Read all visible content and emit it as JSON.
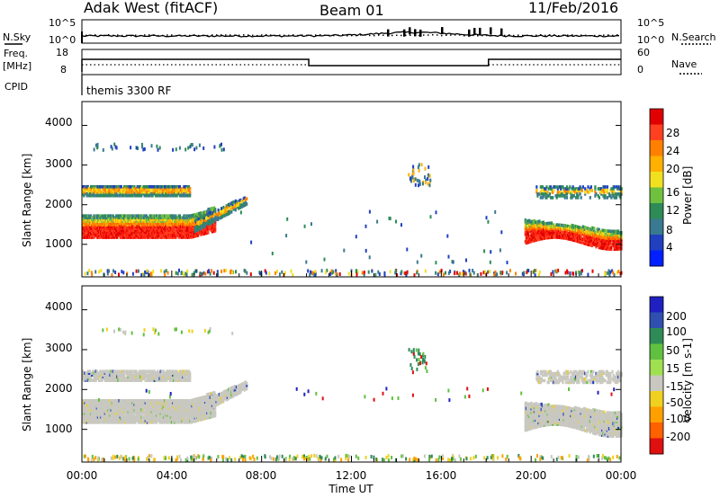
{
  "header": {
    "station": "Adak West (fitACF)",
    "beam": "Beam 01",
    "date": "11/Feb/2016"
  },
  "side_labels": {
    "nsky": "N.Sky",
    "nsearch": "N.Search",
    "freq_line1": "Freq.",
    "freq_line2": "[MHz]",
    "nave": "Nave",
    "cpid": "CPID",
    "cpid_value": "themis 3300 RF"
  },
  "noise_panel": {
    "left_ticks": [
      "10^5",
      "10^0"
    ],
    "right_ticks": [
      "10^5",
      "10^0"
    ]
  },
  "freq_panel": {
    "left_ticks": [
      "18",
      "8"
    ],
    "right_ticks": [
      "60",
      "0"
    ]
  },
  "power_colorbar": {
    "label": "Power [dB]",
    "ticks": [
      "28",
      "24",
      "20",
      "16",
      "12",
      "8",
      "4"
    ],
    "colors": [
      "#e00000",
      "#ff4020",
      "#ff8000",
      "#ffb000",
      "#f0e020",
      "#70c040",
      "#2e8b57",
      "#3a7a90",
      "#2040c0",
      "#0020ff"
    ]
  },
  "velocity_colorbar": {
    "label": "Velocity [m s-1]",
    "ticks": [
      "200",
      "100",
      "50",
      "15",
      "-15",
      "-50",
      "-100",
      "-200"
    ],
    "colors": [
      "#2020c0",
      "#3050b0",
      "#2e8b57",
      "#60c040",
      "#a0e050",
      "#c8c8c0",
      "#f0d020",
      "#ffa000",
      "#ff6000",
      "#e01010"
    ]
  },
  "range_axis": {
    "label": "Slant Range [km]",
    "ticks": [
      "4000",
      "3000",
      "2000",
      "1000"
    ]
  },
  "time_axis": {
    "label": "Time UT",
    "ticks": [
      "00:00",
      "04:00",
      "08:00",
      "12:00",
      "16:00",
      "20:00",
      "00:00"
    ]
  },
  "chart_data": [
    {
      "type": "heatmap",
      "panel": "power",
      "x_unit": "hours UT",
      "y_unit": "km",
      "xlim": [
        0,
        24
      ],
      "ylim": [
        180,
        4600
      ],
      "colorbar": "Power [dB]",
      "features": [
        {
          "name": "main band",
          "t_start": 0.0,
          "t_end": 5.9,
          "range_start": 1200,
          "range_end": 1700,
          "level": "high"
        },
        {
          "name": "upper band",
          "t_start": 0.0,
          "t_end": 4.8,
          "range_start": 2250,
          "range_end": 2400,
          "level": "medium"
        },
        {
          "name": "rising tail",
          "t_start": 5.0,
          "t_end": 7.3,
          "range_start": 1300,
          "range_end": 2200,
          "level": "medium"
        },
        {
          "name": "evening band",
          "t_start": 19.7,
          "t_end": 24.0,
          "range_start": 1000,
          "range_end": 1600,
          "level": "high"
        },
        {
          "name": "ground scatter",
          "t_start": 0.0,
          "t_end": 24.0,
          "range_start": 200,
          "range_end": 300,
          "level": "low"
        }
      ]
    },
    {
      "type": "heatmap",
      "panel": "velocity",
      "x_unit": "hours UT",
      "y_unit": "km",
      "xlim": [
        0,
        24
      ],
      "ylim": [
        180,
        4600
      ],
      "colorbar": "Velocity [m s-1]",
      "features": [
        {
          "name": "main band",
          "t_start": 0.0,
          "t_end": 5.9,
          "range_start": 1200,
          "range_end": 1700,
          "level": "near zero"
        },
        {
          "name": "evening band",
          "t_start": 19.7,
          "t_end": 24.0,
          "range_start": 1000,
          "range_end": 1600,
          "level": "near zero"
        }
      ]
    }
  ]
}
